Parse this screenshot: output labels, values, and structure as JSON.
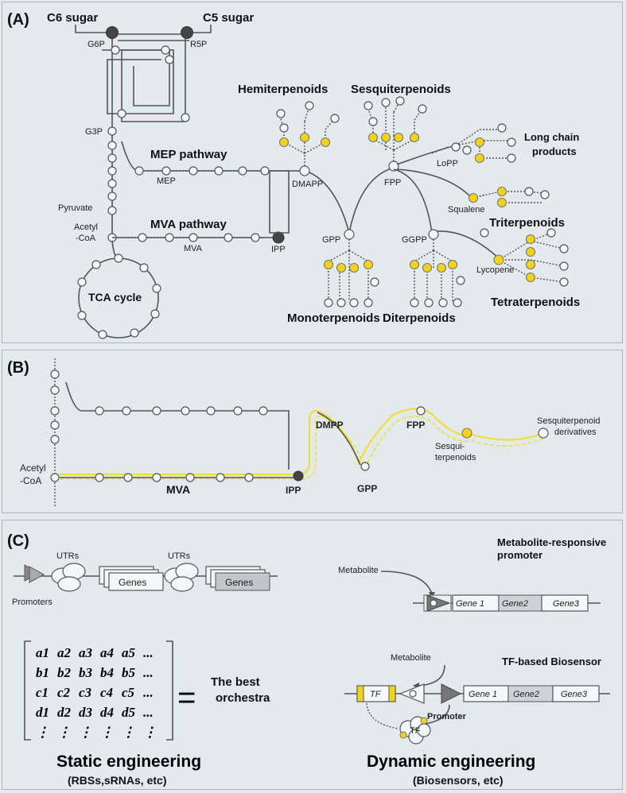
{
  "panel_a": {
    "label": "(A)",
    "c6_sugar": "C6 sugar",
    "c5_sugar": "C5 sugar",
    "g6p": "G6P",
    "r5p": "R5P",
    "g3p": "G3P",
    "pyruvate": "Pyruvate",
    "acetyl_1": "Acetyl",
    "acetyl_2": "-CoA",
    "mep_pathway": "MEP pathway",
    "mep": "MEP",
    "mva_pathway": "MVA pathway",
    "mva": "MVA",
    "ipp": "IPP",
    "dmapp": "DMAPP",
    "tca_cycle": "TCA cycle",
    "hemiterpenoids": "Hemiterpenoids",
    "sesquiterpenoids": "Sesquiterpenoids",
    "fpp": "FPP",
    "gpp": "GPP",
    "ggpp": "GGPP",
    "lopp": "LoPP",
    "long_chain_1": "Long chain",
    "long_chain_2": "products",
    "squalene": "Squalene",
    "triterpenoids": "Triterpenoids",
    "lycopene": "Lycopene",
    "tetraterpenoids": "Tetraterpenoids",
    "monoterpenoids": "Monoterpenoids",
    "diterpenoids": "Diterpenoids"
  },
  "panel_b": {
    "label": "(B)",
    "acetyl_1": "Acetyl",
    "acetyl_2": "-CoA",
    "mva": "MVA",
    "ipp": "IPP",
    "dmpp": "DMPP",
    "gpp": "GPP",
    "fpp": "FPP",
    "sesqui_1": "Sesqui-",
    "sesqui_2": "terpenoids",
    "deriv_1": "Sesquiterpenoid",
    "deriv_2": "derivatives"
  },
  "panel_c": {
    "label": "(C)",
    "utrs_1": "UTRs",
    "utrs_2": "UTRs",
    "genes_1": "Genes",
    "genes_2": "Genes",
    "promoters": "Promoters",
    "matrix_rows": [
      [
        "a1",
        "a2",
        "a3",
        "a4",
        "a5",
        "..."
      ],
      [
        "b1",
        "b2",
        "b3",
        "b4",
        "b5",
        "..."
      ],
      [
        "c1",
        "c2",
        "c3",
        "c4",
        "c5",
        "..."
      ],
      [
        "d1",
        "d2",
        "d3",
        "d4",
        "d5",
        "..."
      ],
      [
        "⋮",
        "⋮",
        "⋮",
        "⋮",
        "⋮",
        "⋮"
      ]
    ],
    "equals": "=",
    "best_1": "The best",
    "best_2": "orchestra",
    "static_title": "Static engineering",
    "static_sub": "(RBSs,sRNAs, etc)",
    "metabolite_responsive_1": "Metabolite-responsive",
    "metabolite_responsive_2": "promoter",
    "metabolite_1": "Metabolite",
    "gene1_a": "Gene 1",
    "gene2_a": "Gene2",
    "gene3_a": "Gene3",
    "metabolite_2": "Metabolite",
    "tf_biosensor": "TF-based Biosensor",
    "tf_box": "TF",
    "gene1_b": "Gene 1",
    "gene2_b": "Gene2",
    "gene3_b": "Gene3",
    "promoter": "Promoter",
    "tf_protein": "TF",
    "dynamic_title": "Dynamic engineering",
    "dynamic_sub": "(Biosensors, etc)"
  },
  "colors": {
    "background": "#e2eaec",
    "yellow_node": "#f3d21b",
    "dark_node": "#444444",
    "line": "#555555"
  }
}
